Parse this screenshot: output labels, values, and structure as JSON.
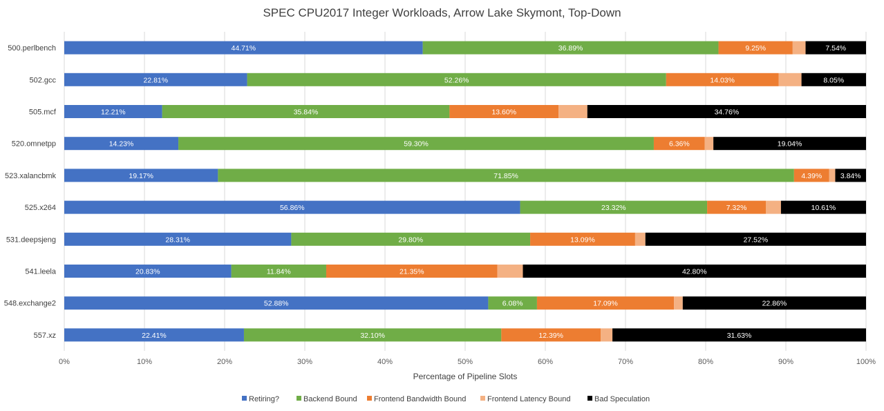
{
  "chart_data": {
    "type": "bar",
    "orientation": "horizontal",
    "stacked": true,
    "title": "SPEC CPU2017 Integer Workloads, Arrow Lake Skymont, Top-Down",
    "xlabel": "Percentage of Pipeline Slots",
    "ylabel": "",
    "xlim": [
      0,
      100
    ],
    "x_ticks": [
      "0%",
      "10%",
      "20%",
      "30%",
      "40%",
      "50%",
      "60%",
      "70%",
      "80%",
      "90%",
      "100%"
    ],
    "grid": true,
    "legend_position": "bottom",
    "categories": [
      "500.perlbench",
      "502.gcc",
      "505.mcf",
      "520.omnetpp",
      "523.xalancbmk",
      "525.x264",
      "531.deepsjeng",
      "541.leela",
      "548.exchange2",
      "557.xz"
    ],
    "series": [
      {
        "name": "Retiring?",
        "color": "#4472C4",
        "values": [
          44.71,
          22.81,
          12.21,
          14.23,
          19.17,
          56.86,
          28.31,
          20.83,
          52.88,
          22.41
        ],
        "labels": [
          "44.71%",
          "22.81%",
          "12.21%",
          "14.23%",
          "19.17%",
          "56.86%",
          "28.31%",
          "20.83%",
          "52.88%",
          "22.41%"
        ]
      },
      {
        "name": "Backend Bound",
        "color": "#70AD47",
        "values": [
          36.89,
          52.26,
          35.84,
          59.3,
          71.85,
          23.32,
          29.8,
          11.84,
          6.08,
          32.1
        ],
        "labels": [
          "36.89%",
          "52.26%",
          "35.84%",
          "59.30%",
          "71.85%",
          "23.32%",
          "29.80%",
          "11.84%",
          "6.08%",
          "32.10%"
        ]
      },
      {
        "name": "Frontend Bandwidth Bound",
        "color": "#ED7D31",
        "values": [
          9.25,
          14.03,
          13.6,
          6.36,
          4.39,
          7.32,
          13.09,
          21.35,
          17.09,
          12.39
        ],
        "labels": [
          "9.25%",
          "14.03%",
          "13.60%",
          "6.36%",
          "4.39%",
          "7.32%",
          "13.09%",
          "21.35%",
          "17.09%",
          "12.39%"
        ]
      },
      {
        "name": "Frontend Latency Bound",
        "color": "#F4B183",
        "values": [
          1.61,
          2.85,
          3.59,
          1.07,
          0.75,
          1.89,
          1.28,
          3.18,
          1.09,
          1.47
        ],
        "labels": [
          "",
          "",
          "",
          "",
          "",
          "",
          "",
          "",
          "",
          ""
        ]
      },
      {
        "name": "Bad Speculation",
        "color": "#000000",
        "values": [
          7.54,
          8.05,
          34.76,
          19.04,
          3.84,
          10.61,
          27.52,
          42.8,
          22.86,
          31.63
        ],
        "labels": [
          "7.54%",
          "8.05%",
          "34.76%",
          "19.04%",
          "3.84%",
          "10.61%",
          "27.52%",
          "42.80%",
          "22.86%",
          "31.63%"
        ]
      }
    ]
  }
}
